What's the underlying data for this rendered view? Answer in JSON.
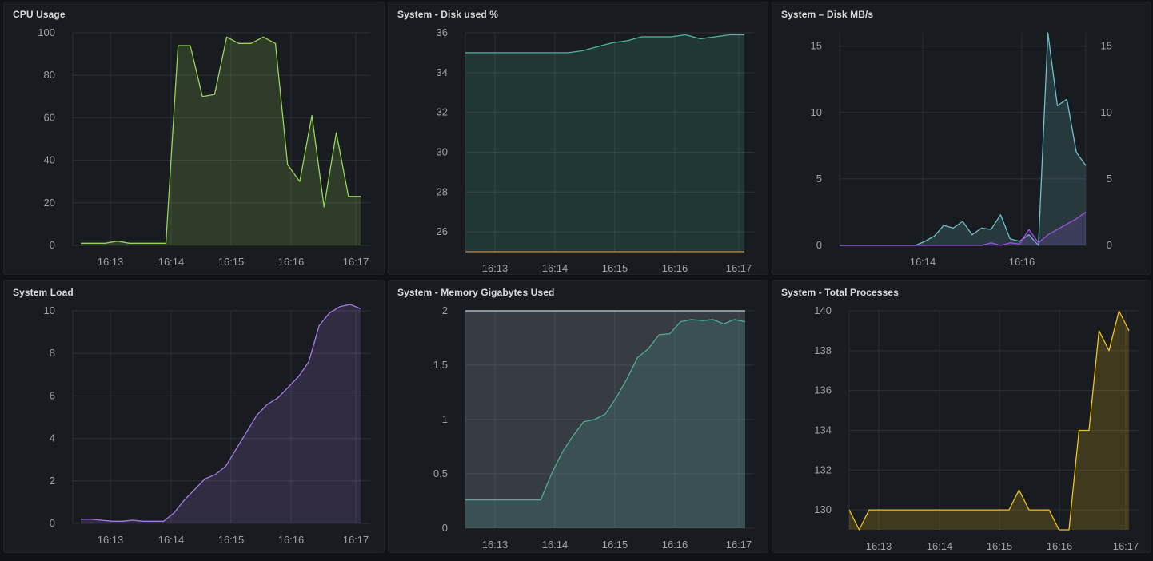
{
  "dashboard": {
    "background": "#111217",
    "panel_background": "#181b1f",
    "grid_color": "#2c2f36"
  },
  "panels": [
    {
      "title": "CPU Usage"
    },
    {
      "title": "System - Disk used %"
    },
    {
      "title": "System – Disk MB/s"
    },
    {
      "title": "System Load"
    },
    {
      "title": "System - Memory Gigabytes Used"
    },
    {
      "title": "System - Total Processes"
    }
  ],
  "chart_data": [
    {
      "panel": "CPU Usage",
      "type": "area",
      "x": [
        "16:12:30",
        "16:12:45",
        "16:13:00",
        "16:13:15",
        "16:13:30",
        "16:13:45",
        "16:14:00",
        "16:14:15",
        "16:14:20",
        "16:14:30",
        "16:14:45",
        "16:15:00",
        "16:15:10",
        "16:15:20",
        "16:15:30",
        "16:15:45",
        "16:16:00",
        "16:16:10",
        "16:16:20",
        "16:16:30",
        "16:16:40",
        "16:16:50",
        "16:17:00",
        "16:17:10"
      ],
      "series": [
        {
          "color": "#96d45a",
          "values": [
            1,
            1,
            1,
            2,
            1,
            1,
            1,
            1,
            94,
            94,
            70,
            71,
            98,
            95,
            95,
            98,
            95,
            38,
            30,
            61,
            18,
            53,
            23,
            23
          ]
        }
      ],
      "x_ticks": [
        "16:13",
        "16:14",
        "16:15",
        "16:16",
        "16:17"
      ],
      "y_ticks": [
        "0",
        "20",
        "40",
        "60",
        "80",
        "100"
      ],
      "ylim": [
        0,
        100
      ]
    },
    {
      "panel": "System - Disk used %",
      "type": "area",
      "x_ticks": [
        "16:13",
        "16:14",
        "16:15",
        "16:16",
        "16:17"
      ],
      "y_ticks": [
        "26",
        "28",
        "30",
        "32",
        "34",
        "36"
      ],
      "ylim": [
        25,
        36
      ],
      "series": [
        {
          "color": "#4bb7a3",
          "values": [
            35,
            35,
            35,
            35,
            35,
            35,
            35,
            35,
            35.1,
            35.3,
            35.5,
            35.6,
            35.8,
            35.8,
            35.8,
            35.9,
            35.7,
            35.8,
            35.9,
            35.9
          ]
        },
        {
          "color": "#c08a3e",
          "values": [
            25,
            25,
            25,
            25,
            25,
            25,
            25,
            25,
            25,
            25,
            25,
            25,
            25,
            25,
            25,
            25,
            25,
            25,
            25,
            25
          ]
        }
      ]
    },
    {
      "panel": "System – Disk MB/s",
      "type": "area",
      "x_ticks": [
        "16:14",
        "16:16"
      ],
      "y_ticks_left": [
        "0",
        "5",
        "10",
        "15"
      ],
      "y_ticks_right": [
        "0",
        "5",
        "10",
        "15"
      ],
      "ylim": [
        0,
        16
      ],
      "series": [
        {
          "color": "#6fc0c8",
          "values": [
            0,
            0,
            0,
            0,
            0,
            0,
            0,
            0,
            0,
            0.3,
            0.7,
            1.5,
            1.3,
            1.8,
            0.8,
            1.3,
            1.2,
            2.3,
            0.5,
            0.3,
            0.8,
            0,
            16,
            10.5,
            11,
            7,
            6
          ]
        },
        {
          "color": "#9b51e0",
          "values": [
            0,
            0,
            0,
            0,
            0,
            0,
            0,
            0,
            0,
            0,
            0,
            0,
            0,
            0,
            0,
            0,
            0.2,
            0,
            0.2,
            0.1,
            1.2,
            0.2,
            0.8,
            1.2,
            1.6,
            2,
            2.5
          ]
        }
      ]
    },
    {
      "panel": "System Load",
      "type": "area",
      "x_ticks": [
        "16:13",
        "16:14",
        "16:15",
        "16:16",
        "16:17"
      ],
      "y_ticks": [
        "0",
        "2",
        "4",
        "6",
        "8",
        "10"
      ],
      "ylim": [
        0,
        10
      ],
      "series": [
        {
          "color": "#a879e6",
          "values": [
            0.2,
            0.2,
            0.15,
            0.1,
            0.1,
            0.15,
            0.1,
            0.1,
            0.1,
            0.5,
            1.1,
            1.6,
            2.1,
            2.3,
            2.7,
            3.5,
            4.3,
            5.1,
            5.6,
            5.9,
            6.4,
            6.9,
            7.6,
            9.3,
            9.9,
            10.2,
            10.3,
            10.1
          ]
        }
      ]
    },
    {
      "panel": "System - Memory Gigabytes Used",
      "type": "area",
      "x_ticks": [
        "16:13",
        "16:14",
        "16:15",
        "16:16",
        "16:17"
      ],
      "y_ticks": [
        "0",
        "0.5",
        "1",
        "1.5",
        "2"
      ],
      "ylim": [
        0,
        2
      ],
      "series": [
        {
          "color": "#37a48a",
          "values": [
            0.26,
            0.26,
            0.26,
            0.26,
            0.26,
            0.26,
            0.26,
            0.26,
            0.5,
            0.7,
            0.85,
            0.98,
            1.0,
            1.05,
            1.2,
            1.37,
            1.57,
            1.65,
            1.78,
            1.79,
            1.9,
            1.92,
            1.91,
            1.92,
            1.88,
            1.92,
            1.9
          ]
        },
        {
          "color": "#c4d4e6",
          "values": [
            2,
            2,
            2,
            2,
            2,
            2,
            2,
            2,
            2,
            2,
            2,
            2,
            2,
            2,
            2,
            2,
            2,
            2,
            2,
            2,
            2,
            2,
            2,
            2,
            2,
            2,
            2
          ]
        }
      ]
    },
    {
      "panel": "System - Total Processes",
      "type": "area",
      "x_ticks": [
        "16:13",
        "16:14",
        "16:15",
        "16:16",
        "16:17"
      ],
      "y_ticks": [
        "130",
        "132",
        "134",
        "136",
        "138",
        "140"
      ],
      "ylim": [
        129,
        140
      ],
      "series": [
        {
          "color": "#f2c11d",
          "values": [
            130,
            129,
            130,
            130,
            130,
            130,
            130,
            130,
            130,
            130,
            130,
            130,
            130,
            130,
            130,
            130,
            130,
            131,
            130,
            130,
            130,
            129,
            129,
            134,
            134,
            139,
            138,
            140,
            139
          ]
        }
      ]
    }
  ]
}
